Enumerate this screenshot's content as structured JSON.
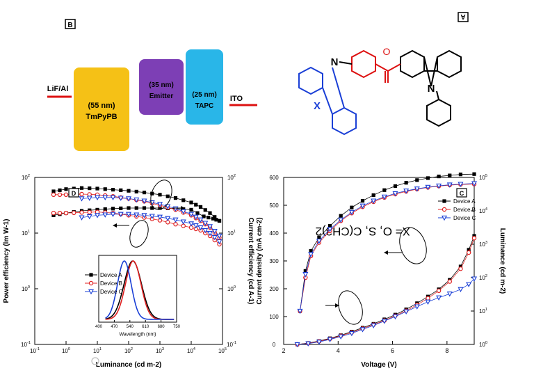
{
  "panel_labels": {
    "a": "A",
    "b": "B",
    "c": "C",
    "d": "D"
  },
  "structure": {
    "formula": "X= O, S, C(CH3)2",
    "atom_n": "N",
    "atom_x": "X",
    "atom_o": "O"
  },
  "device_stack": {
    "left_electrode": "ITO",
    "right_electrode": "LiF/Al",
    "layers": [
      {
        "name": "TAPC",
        "thickness": "(25 nm)",
        "color": "#29b6e8"
      },
      {
        "name": "Emitter",
        "thickness": "(35 nm)",
        "color": "#7d3fb5"
      },
      {
        "name": "TmPyPB",
        "thickness": "(55 nm)",
        "color": "#f5c116"
      }
    ]
  },
  "series_styles": [
    {
      "name": "Device A",
      "color": "#000000",
      "marker": "square"
    },
    {
      "name": "Device B",
      "color": "#e02020",
      "marker": "circle"
    },
    {
      "name": "Device C",
      "color": "#1a3fd6",
      "marker": "triangle"
    }
  ],
  "chart_data": [
    {
      "type": "line",
      "panel": "C",
      "xlabel": "Voltage (V)",
      "ylabel": "Current density (mA cm-2)",
      "y2label": "Luminance (cd m-2)",
      "xlim": [
        2,
        9
      ],
      "ylim": [
        0,
        600
      ],
      "y2lim_log": [
        0,
        5
      ],
      "x_ticks": [
        "2",
        "4",
        "6",
        "8"
      ],
      "y_ticks": [
        "0",
        "100",
        "200",
        "300",
        "400",
        "500",
        "600"
      ],
      "y2_ticks": [
        "10^0",
        "10^1",
        "10^2",
        "10^3",
        "10^4",
        "10^5"
      ],
      "legend": [
        "Device A",
        "Device B",
        "Device C"
      ],
      "series": [
        {
          "name": "Device A",
          "quantity": "current_density",
          "points": [
            [
              2.5,
              0
            ],
            [
              2.9,
              5
            ],
            [
              3.3,
              12
            ],
            [
              3.7,
              22
            ],
            [
              4.1,
              33
            ],
            [
              4.5,
              46
            ],
            [
              4.9,
              60
            ],
            [
              5.3,
              74
            ],
            [
              5.7,
              90
            ],
            [
              6.1,
              107
            ],
            [
              6.5,
              126
            ],
            [
              6.9,
              148
            ],
            [
              7.3,
              172
            ],
            [
              7.7,
              198
            ],
            [
              8.1,
              232
            ],
            [
              8.5,
              280
            ],
            [
              8.8,
              340
            ],
            [
              9.0,
              390
            ]
          ]
        },
        {
          "name": "Device B",
          "quantity": "current_density",
          "points": [
            [
              2.5,
              0
            ],
            [
              2.9,
              4
            ],
            [
              3.3,
              11
            ],
            [
              3.7,
              20
            ],
            [
              4.1,
              31
            ],
            [
              4.5,
              43
            ],
            [
              4.9,
              57
            ],
            [
              5.3,
              71
            ],
            [
              5.7,
              86
            ],
            [
              6.1,
              103
            ],
            [
              6.5,
              121
            ],
            [
              6.9,
              142
            ],
            [
              7.3,
              166
            ],
            [
              7.7,
              193
            ],
            [
              8.1,
              226
            ],
            [
              8.5,
              272
            ],
            [
              8.8,
              330
            ],
            [
              9.0,
              382
            ]
          ]
        },
        {
          "name": "Device C",
          "quantity": "current_density",
          "points": [
            [
              2.5,
              0
            ],
            [
              2.9,
              3
            ],
            [
              3.3,
              9
            ],
            [
              3.7,
              18
            ],
            [
              4.1,
              28
            ],
            [
              4.5,
              40
            ],
            [
              4.9,
              54
            ],
            [
              5.3,
              68
            ],
            [
              5.7,
              84
            ],
            [
              6.1,
              100
            ],
            [
              6.5,
              118
            ],
            [
              6.9,
              136
            ],
            [
              7.3,
              153
            ],
            [
              7.7,
              168
            ],
            [
              8.1,
              182
            ],
            [
              8.5,
              198
            ],
            [
              8.8,
              216
            ],
            [
              9.0,
              236
            ]
          ]
        },
        {
          "name": "Device A",
          "quantity": "luminance",
          "points": [
            [
              2.6,
              1
            ],
            [
              2.8,
              2.2
            ],
            [
              3.0,
              2.8
            ],
            [
              3.3,
              3.2
            ],
            [
              3.7,
              3.55
            ],
            [
              4.1,
              3.85
            ],
            [
              4.5,
              4.1
            ],
            [
              4.9,
              4.3
            ],
            [
              5.3,
              4.47
            ],
            [
              5.7,
              4.62
            ],
            [
              6.1,
              4.74
            ],
            [
              6.5,
              4.84
            ],
            [
              6.9,
              4.92
            ],
            [
              7.3,
              4.98
            ],
            [
              7.7,
              5.03
            ],
            [
              8.1,
              5.06
            ],
            [
              8.5,
              5.09
            ],
            [
              9.0,
              5.1
            ]
          ]
        },
        {
          "name": "Device B",
          "quantity": "luminance",
          "points": [
            [
              2.6,
              1
            ],
            [
              2.8,
              2.0
            ],
            [
              3.0,
              2.65
            ],
            [
              3.3,
              3.05
            ],
            [
              3.7,
              3.4
            ],
            [
              4.1,
              3.7
            ],
            [
              4.5,
              3.93
            ],
            [
              4.9,
              4.12
            ],
            [
              5.3,
              4.27
            ],
            [
              5.7,
              4.4
            ],
            [
              6.1,
              4.5
            ],
            [
              6.5,
              4.58
            ],
            [
              6.9,
              4.65
            ],
            [
              7.3,
              4.7
            ],
            [
              7.7,
              4.74
            ],
            [
              8.1,
              4.77
            ],
            [
              8.5,
              4.79
            ],
            [
              9.0,
              4.8
            ]
          ]
        },
        {
          "name": "Device C",
          "quantity": "luminance",
          "points": [
            [
              2.6,
              1
            ],
            [
              2.8,
              2.1
            ],
            [
              3.0,
              2.7
            ],
            [
              3.3,
              3.1
            ],
            [
              3.7,
              3.45
            ],
            [
              4.1,
              3.73
            ],
            [
              4.5,
              3.96
            ],
            [
              4.9,
              4.15
            ],
            [
              5.3,
              4.3
            ],
            [
              5.7,
              4.42
            ],
            [
              6.1,
              4.52
            ],
            [
              6.5,
              4.6
            ],
            [
              6.9,
              4.66
            ],
            [
              7.3,
              4.71
            ],
            [
              7.7,
              4.75
            ],
            [
              8.1,
              4.78
            ],
            [
              8.5,
              4.8
            ],
            [
              9.0,
              4.82
            ]
          ]
        }
      ]
    },
    {
      "type": "scatter",
      "panel": "D",
      "xlabel": "Luminance (cd m-2)",
      "ylabel": "Power efficiency (lm W-1)",
      "y2label": "Current efficiency (cd A-1)",
      "xlim_log": [
        -1,
        5
      ],
      "ylim_log": [
        -1,
        2
      ],
      "y2lim_log": [
        -1,
        2
      ],
      "x_ticks": [
        "10^-1",
        "10^0",
        "10^1",
        "10^2",
        "10^3",
        "10^4",
        "10^5"
      ],
      "y_ticks": [
        "10^-1",
        "10^0",
        "10^1",
        "10^2"
      ],
      "y2_ticks": [
        "10^-1",
        "10^0",
        "10^1",
        "10^2"
      ],
      "legend": [
        "Device A",
        "Device B",
        "Device C"
      ],
      "series": [
        {
          "name": "Device A",
          "quantity": "current_efficiency",
          "points": [
            [
              -0.4,
              1.32
            ],
            [
              0,
              1.36
            ],
            [
              0.5,
              1.4
            ],
            [
              1,
              1.42
            ],
            [
              1.5,
              1.44
            ],
            [
              2,
              1.45
            ],
            [
              2.5,
              1.45
            ],
            [
              3,
              1.45
            ],
            [
              3.5,
              1.44
            ],
            [
              4,
              1.42
            ],
            [
              4.4,
              1.3
            ],
            [
              4.7,
              1.26
            ],
            [
              4.9,
              1.22
            ]
          ]
        },
        {
          "name": "Device B",
          "quantity": "current_efficiency",
          "points": [
            [
              -0.4,
              1.36
            ],
            [
              0,
              1.36
            ],
            [
              0.5,
              1.37
            ],
            [
              1,
              1.38
            ],
            [
              1.5,
              1.36
            ],
            [
              2,
              1.32
            ],
            [
              2.5,
              1.28
            ],
            [
              3,
              1.23
            ],
            [
              3.5,
              1.16
            ],
            [
              4,
              1.1
            ],
            [
              4.3,
              1.05
            ],
            [
              4.6,
              0.95
            ],
            [
              4.9,
              0.8
            ]
          ]
        },
        {
          "name": "Device C",
          "quantity": "current_efficiency",
          "points": [
            [
              0.5,
              1.28
            ],
            [
              1,
              1.32
            ],
            [
              1.5,
              1.34
            ],
            [
              2,
              1.34
            ],
            [
              2.5,
              1.32
            ],
            [
              3,
              1.29
            ],
            [
              3.5,
              1.24
            ],
            [
              4,
              1.17
            ],
            [
              4.3,
              1.1
            ],
            [
              4.6,
              1.0
            ],
            [
              4.9,
              0.85
            ]
          ]
        },
        {
          "name": "Device A",
          "quantity": "power_efficiency",
          "points": [
            [
              -0.4,
              1.75
            ],
            [
              0,
              1.79
            ],
            [
              0.5,
              1.81
            ],
            [
              1,
              1.8
            ],
            [
              1.5,
              1.78
            ],
            [
              2,
              1.76
            ],
            [
              2.5,
              1.73
            ],
            [
              3,
              1.69
            ],
            [
              3.5,
              1.63
            ],
            [
              4,
              1.55
            ],
            [
              4.3,
              1.47
            ],
            [
              4.6,
              1.36
            ],
            [
              4.9,
              1.22
            ]
          ]
        },
        {
          "name": "Device B",
          "quantity": "power_efficiency",
          "points": [
            [
              -0.4,
              1.69
            ],
            [
              0,
              1.69
            ],
            [
              0.5,
              1.7
            ],
            [
              1,
              1.69
            ],
            [
              1.5,
              1.66
            ],
            [
              2,
              1.62
            ],
            [
              2.5,
              1.57
            ],
            [
              3,
              1.5
            ],
            [
              3.5,
              1.42
            ],
            [
              4,
              1.32
            ],
            [
              4.3,
              1.22
            ],
            [
              4.6,
              1.1
            ],
            [
              4.9,
              0.92
            ]
          ]
        },
        {
          "name": "Device C",
          "quantity": "power_efficiency",
          "points": [
            [
              0.5,
              1.62
            ],
            [
              1,
              1.64
            ],
            [
              1.5,
              1.64
            ],
            [
              2,
              1.62
            ],
            [
              2.5,
              1.58
            ],
            [
              3,
              1.52
            ],
            [
              3.5,
              1.44
            ],
            [
              4,
              1.34
            ],
            [
              4.3,
              1.24
            ],
            [
              4.6,
              1.12
            ],
            [
              4.9,
              0.95
            ]
          ]
        }
      ]
    },
    {
      "type": "line",
      "panel": "D-inset",
      "xlabel": "Wavelength (nm)",
      "xlim": [
        400,
        750
      ],
      "x_ticks": [
        "400",
        "470",
        "540",
        "610",
        "680",
        "750"
      ],
      "series": [
        {
          "name": "Device A",
          "peak_nm": 553,
          "fwhm_nm": 92
        },
        {
          "name": "Device B",
          "peak_nm": 555,
          "fwhm_nm": 82
        },
        {
          "name": "Device C",
          "peak_nm": 515,
          "fwhm_nm": 72
        }
      ]
    }
  ]
}
